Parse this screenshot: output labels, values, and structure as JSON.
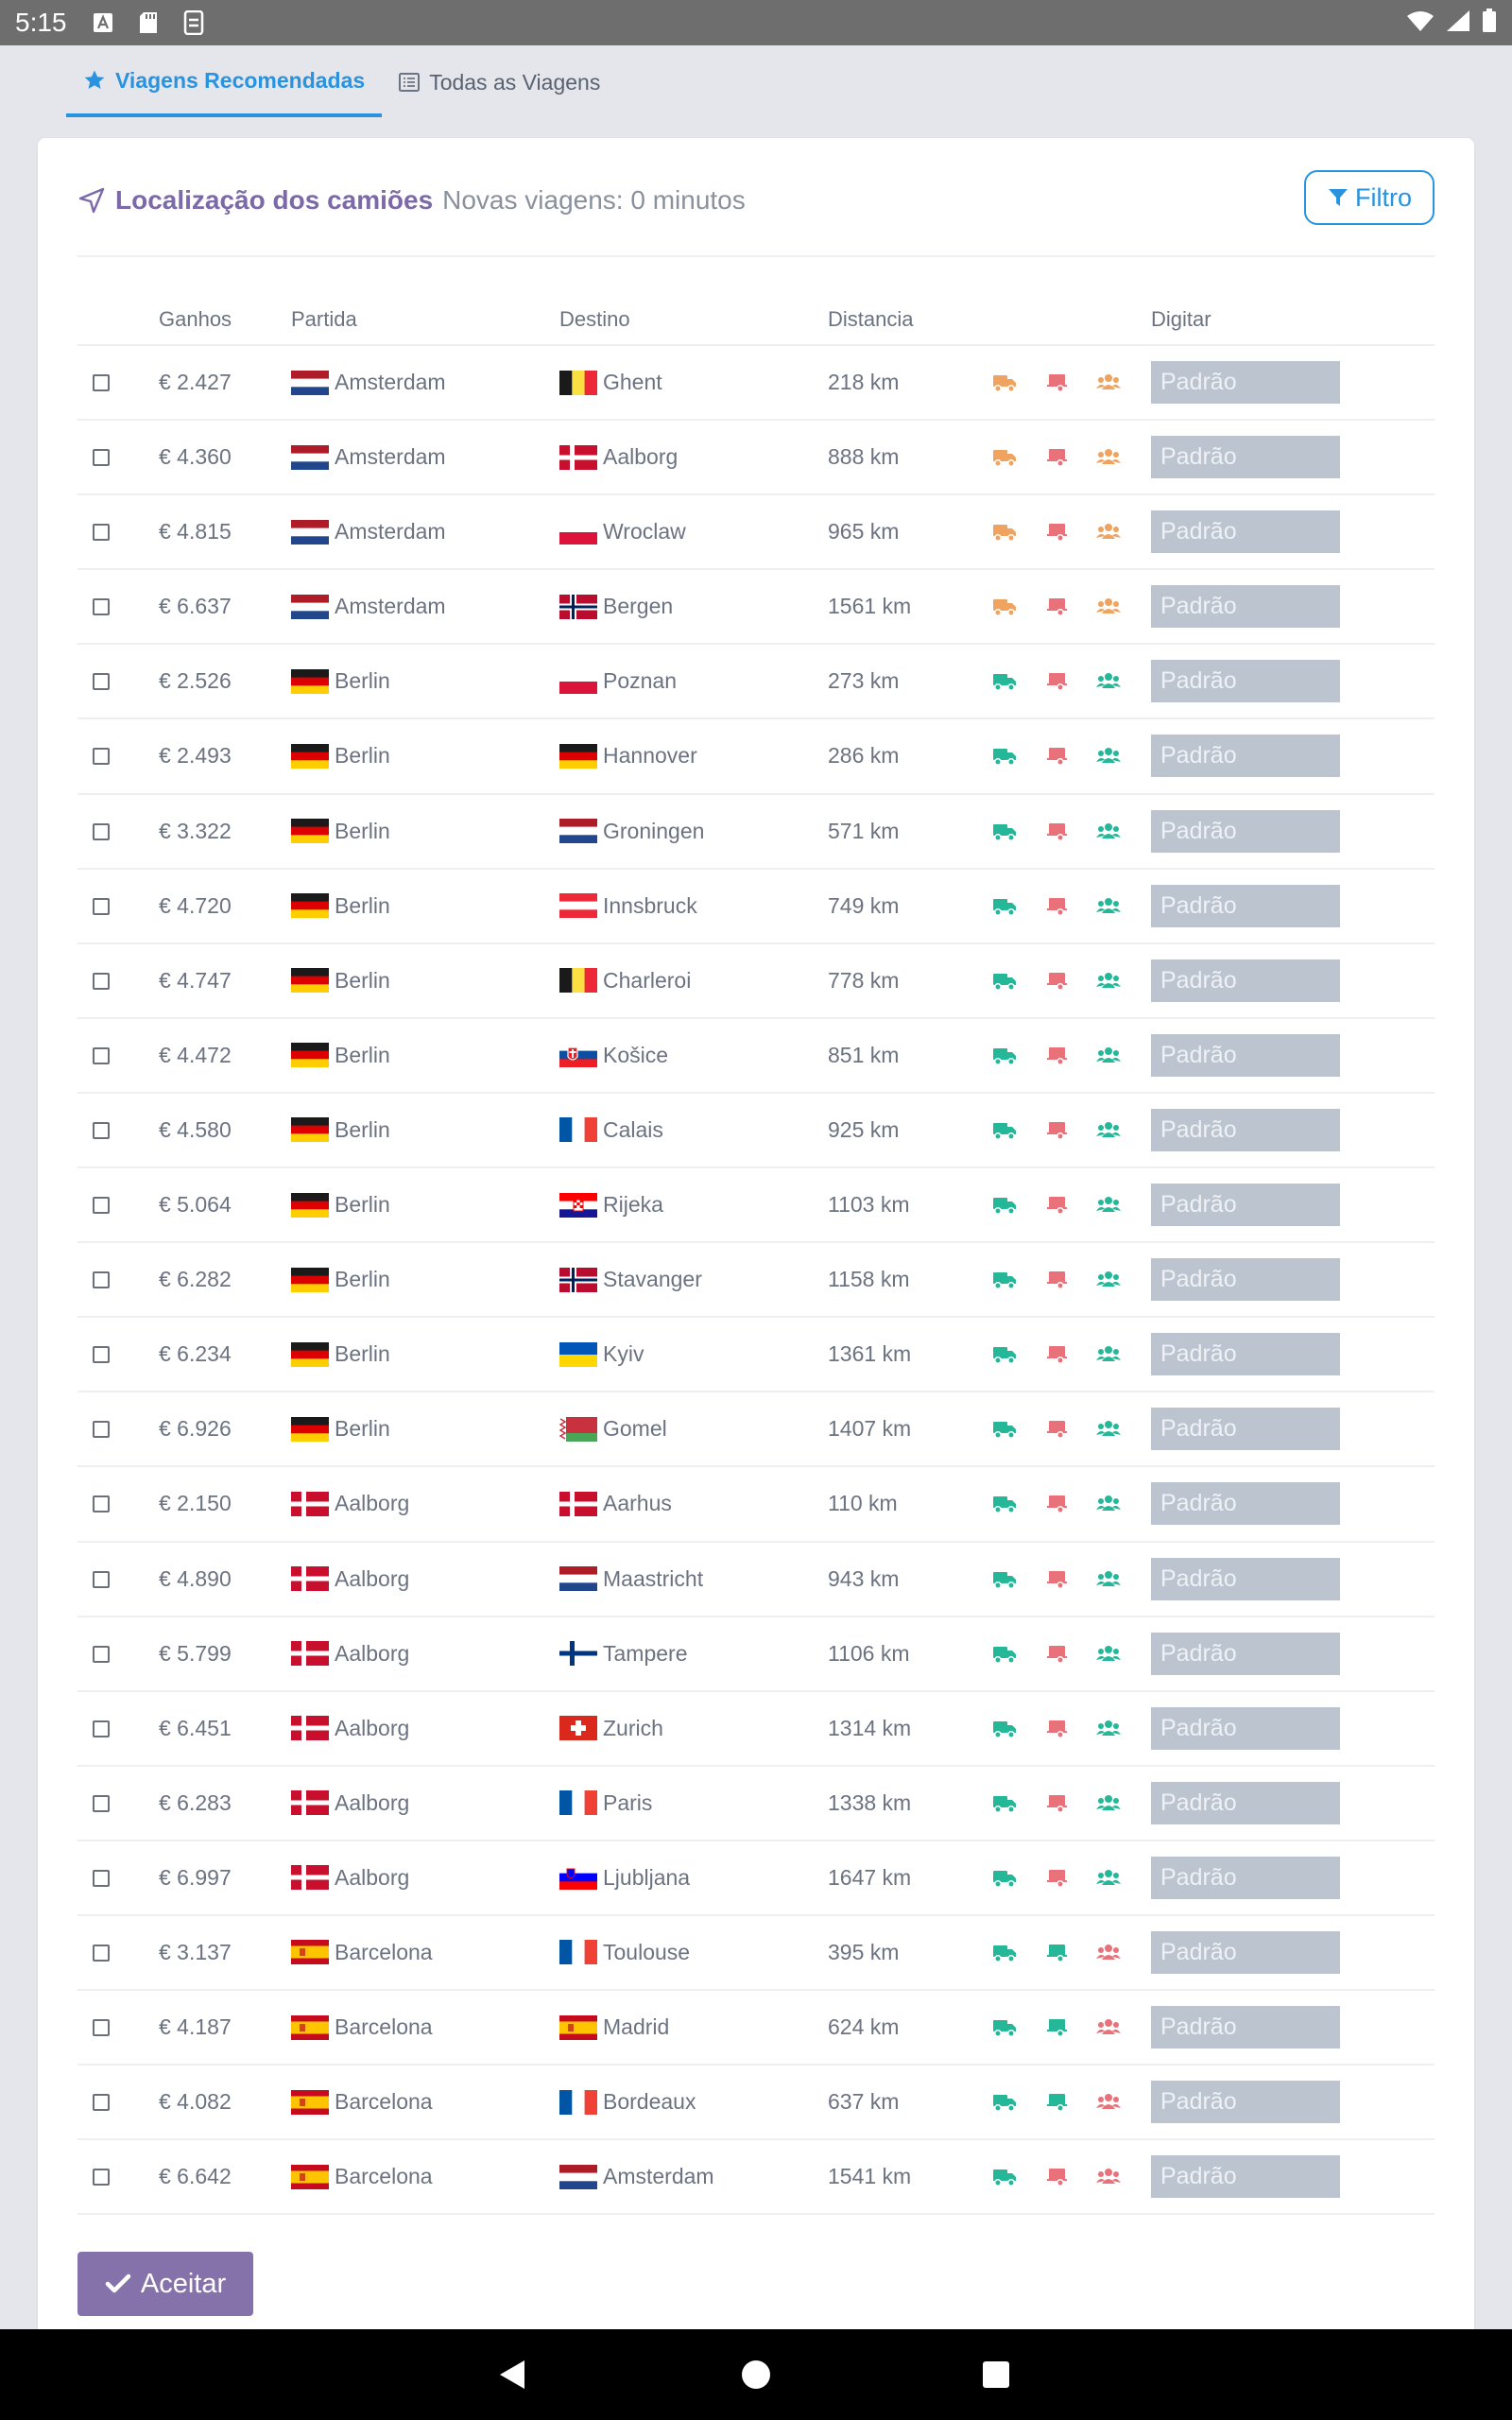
{
  "status_bar": {
    "time": "5:15"
  },
  "tabs": [
    {
      "label": "Viagens Recomendadas",
      "active": true
    },
    {
      "label": "Todas as Viagens",
      "active": false
    }
  ],
  "header": {
    "title": "Localização dos camiões",
    "subtitle": "Novas viagens: 0 minutos",
    "filter_label": "Filtro"
  },
  "columns": [
    "Ganhos",
    "Partida",
    "Destino",
    "Distancia",
    "Digitar"
  ],
  "select_default": "Padrão",
  "accept_label": "Aceitar",
  "colors": {
    "accent_blue": "#2a93e0",
    "title_purple": "#7b69a8",
    "button_purple": "#8672ab",
    "icon_orange": "#f0a35e",
    "icon_red": "#e8717a",
    "icon_green": "#25b898",
    "select_gray": "#bcc4d0"
  },
  "rows": [
    {
      "earnings": "€ 2.427",
      "origin": "Amsterdam",
      "origin_flag": "nl",
      "destination": "Ghent",
      "dest_flag": "be",
      "distance": "218 km",
      "icons": [
        "orange",
        "red",
        "orange"
      ]
    },
    {
      "earnings": "€ 4.360",
      "origin": "Amsterdam",
      "origin_flag": "nl",
      "destination": "Aalborg",
      "dest_flag": "dk",
      "distance": "888 km",
      "icons": [
        "orange",
        "red",
        "orange"
      ]
    },
    {
      "earnings": "€ 4.815",
      "origin": "Amsterdam",
      "origin_flag": "nl",
      "destination": "Wroclaw",
      "dest_flag": "pl",
      "distance": "965 km",
      "icons": [
        "orange",
        "red",
        "orange"
      ]
    },
    {
      "earnings": "€ 6.637",
      "origin": "Amsterdam",
      "origin_flag": "nl",
      "destination": "Bergen",
      "dest_flag": "no",
      "distance": "1561 km",
      "icons": [
        "orange",
        "red",
        "orange"
      ]
    },
    {
      "earnings": "€ 2.526",
      "origin": "Berlin",
      "origin_flag": "de",
      "destination": "Poznan",
      "dest_flag": "pl",
      "distance": "273 km",
      "icons": [
        "green",
        "red",
        "green"
      ]
    },
    {
      "earnings": "€ 2.493",
      "origin": "Berlin",
      "origin_flag": "de",
      "destination": "Hannover",
      "dest_flag": "de",
      "distance": "286 km",
      "icons": [
        "green",
        "red",
        "green"
      ]
    },
    {
      "earnings": "€ 3.322",
      "origin": "Berlin",
      "origin_flag": "de",
      "destination": "Groningen",
      "dest_flag": "nl",
      "distance": "571 km",
      "icons": [
        "green",
        "red",
        "green"
      ]
    },
    {
      "earnings": "€ 4.720",
      "origin": "Berlin",
      "origin_flag": "de",
      "destination": "Innsbruck",
      "dest_flag": "at",
      "distance": "749 km",
      "icons": [
        "green",
        "red",
        "green"
      ]
    },
    {
      "earnings": "€ 4.747",
      "origin": "Berlin",
      "origin_flag": "de",
      "destination": "Charleroi",
      "dest_flag": "be",
      "distance": "778 km",
      "icons": [
        "green",
        "red",
        "green"
      ]
    },
    {
      "earnings": "€ 4.472",
      "origin": "Berlin",
      "origin_flag": "de",
      "destination": "Košice",
      "dest_flag": "sk",
      "distance": "851 km",
      "icons": [
        "green",
        "red",
        "green"
      ]
    },
    {
      "earnings": "€ 4.580",
      "origin": "Berlin",
      "origin_flag": "de",
      "destination": "Calais",
      "dest_flag": "fr",
      "distance": "925 km",
      "icons": [
        "green",
        "red",
        "green"
      ]
    },
    {
      "earnings": "€ 5.064",
      "origin": "Berlin",
      "origin_flag": "de",
      "destination": "Rijeka",
      "dest_flag": "hr",
      "distance": "1103 km",
      "icons": [
        "green",
        "red",
        "green"
      ]
    },
    {
      "earnings": "€ 6.282",
      "origin": "Berlin",
      "origin_flag": "de",
      "destination": "Stavanger",
      "dest_flag": "no",
      "distance": "1158 km",
      "icons": [
        "green",
        "red",
        "green"
      ]
    },
    {
      "earnings": "€ 6.234",
      "origin": "Berlin",
      "origin_flag": "de",
      "destination": "Kyiv",
      "dest_flag": "ua",
      "distance": "1361 km",
      "icons": [
        "green",
        "red",
        "green"
      ]
    },
    {
      "earnings": "€ 6.926",
      "origin": "Berlin",
      "origin_flag": "de",
      "destination": "Gomel",
      "dest_flag": "by",
      "distance": "1407 km",
      "icons": [
        "green",
        "red",
        "green"
      ]
    },
    {
      "earnings": "€ 2.150",
      "origin": "Aalborg",
      "origin_flag": "dk",
      "destination": "Aarhus",
      "dest_flag": "dk",
      "distance": "110 km",
      "icons": [
        "green",
        "red",
        "green"
      ]
    },
    {
      "earnings": "€ 4.890",
      "origin": "Aalborg",
      "origin_flag": "dk",
      "destination": "Maastricht",
      "dest_flag": "nl",
      "distance": "943 km",
      "icons": [
        "green",
        "red",
        "green"
      ]
    },
    {
      "earnings": "€ 5.799",
      "origin": "Aalborg",
      "origin_flag": "dk",
      "destination": "Tampere",
      "dest_flag": "fi",
      "distance": "1106 km",
      "icons": [
        "green",
        "red",
        "green"
      ]
    },
    {
      "earnings": "€ 6.451",
      "origin": "Aalborg",
      "origin_flag": "dk",
      "destination": "Zurich",
      "dest_flag": "ch",
      "distance": "1314 km",
      "icons": [
        "green",
        "red",
        "green"
      ]
    },
    {
      "earnings": "€ 6.283",
      "origin": "Aalborg",
      "origin_flag": "dk",
      "destination": "Paris",
      "dest_flag": "fr",
      "distance": "1338 km",
      "icons": [
        "green",
        "red",
        "green"
      ]
    },
    {
      "earnings": "€ 6.997",
      "origin": "Aalborg",
      "origin_flag": "dk",
      "destination": "Ljubljana",
      "dest_flag": "si",
      "distance": "1647 km",
      "icons": [
        "green",
        "red",
        "green"
      ]
    },
    {
      "earnings": "€ 3.137",
      "origin": "Barcelona",
      "origin_flag": "es",
      "destination": "Toulouse",
      "dest_flag": "fr",
      "distance": "395 km",
      "icons": [
        "green",
        "green",
        "red"
      ]
    },
    {
      "earnings": "€ 4.187",
      "origin": "Barcelona",
      "origin_flag": "es",
      "destination": "Madrid",
      "dest_flag": "es",
      "distance": "624 km",
      "icons": [
        "green",
        "green",
        "red"
      ]
    },
    {
      "earnings": "€ 4.082",
      "origin": "Barcelona",
      "origin_flag": "es",
      "destination": "Bordeaux",
      "dest_flag": "fr",
      "distance": "637 km",
      "icons": [
        "green",
        "green",
        "red"
      ]
    },
    {
      "earnings": "€ 6.642",
      "origin": "Barcelona",
      "origin_flag": "es",
      "destination": "Amsterdam",
      "dest_flag": "nl",
      "distance": "1541 km",
      "icons": [
        "green",
        "red",
        "red"
      ]
    }
  ]
}
